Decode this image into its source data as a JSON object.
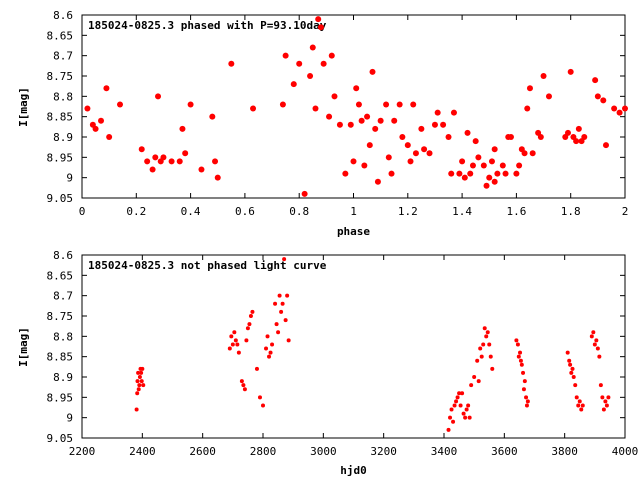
{
  "chart_data": [
    {
      "type": "scatter",
      "title": "185024-0825.3 phased with P=93.10day",
      "xlabel": "phase",
      "ylabel": "I[mag]",
      "xlim": [
        0,
        2
      ],
      "ylim": [
        9.05,
        8.6
      ],
      "y_inverted": true,
      "grid": false,
      "marker_color": "#ff0000",
      "xticks": [
        "0",
        "0.2",
        "0.4",
        "0.6",
        "0.8",
        "1",
        "1.2",
        "1.4",
        "1.6",
        "1.8",
        "2"
      ],
      "yticks": [
        "8.6",
        "8.65",
        "8.7",
        "8.75",
        "8.8",
        "8.85",
        "8.9",
        "8.95",
        "9",
        "9.05"
      ],
      "series": [
        {
          "x": [
            0.02,
            0.04,
            0.05,
            0.07,
            0.09,
            0.1,
            0.14,
            0.22,
            0.24,
            0.26,
            0.27,
            0.28,
            0.29,
            0.3,
            0.33,
            0.36,
            0.37,
            0.38,
            0.4,
            0.44,
            0.48,
            0.49,
            0.5,
            0.55,
            0.63,
            0.74,
            0.75,
            0.78,
            0.8,
            0.82,
            0.84,
            0.85,
            0.86,
            0.87,
            0.88,
            0.89,
            0.91,
            0.92,
            0.93,
            0.95,
            0.97,
            0.99,
            1.0,
            1.01,
            1.02,
            1.03,
            1.04,
            1.05,
            1.06,
            1.07,
            1.08,
            1.09,
            1.1,
            1.12,
            1.13,
            1.14,
            1.15,
            1.17,
            1.18,
            1.2,
            1.21,
            1.22,
            1.23,
            1.25,
            1.26,
            1.28,
            1.3,
            1.31,
            1.33,
            1.35,
            1.36,
            1.37,
            1.39,
            1.4,
            1.41,
            1.42,
            1.43,
            1.44,
            1.45,
            1.46,
            1.48,
            1.49,
            1.5,
            1.51,
            1.52,
            1.52,
            1.53,
            1.55,
            1.56,
            1.57,
            1.58,
            1.6,
            1.61,
            1.62,
            1.63,
            1.64,
            1.65,
            1.66,
            1.68,
            1.69,
            1.7,
            1.72,
            1.78,
            1.79,
            1.8,
            1.81,
            1.82,
            1.83,
            1.84,
            1.85,
            1.89,
            1.9,
            1.92,
            1.93,
            1.96,
            1.98,
            2.0
          ],
          "y": [
            8.83,
            8.87,
            8.88,
            8.86,
            8.78,
            8.9,
            8.82,
            8.93,
            8.96,
            8.98,
            8.95,
            8.8,
            8.96,
            8.95,
            8.96,
            8.96,
            8.88,
            8.94,
            8.82,
            8.98,
            8.85,
            8.96,
            9.0,
            8.72,
            8.83,
            8.82,
            8.7,
            8.77,
            8.72,
            9.04,
            8.75,
            8.68,
            8.83,
            8.61,
            8.63,
            8.72,
            8.85,
            8.7,
            8.8,
            8.87,
            8.99,
            8.87,
            8.96,
            8.78,
            8.82,
            8.86,
            8.97,
            8.85,
            8.92,
            8.74,
            8.88,
            9.01,
            8.86,
            8.82,
            8.95,
            8.99,
            8.86,
            8.82,
            8.9,
            8.92,
            8.96,
            8.82,
            8.94,
            8.88,
            8.93,
            8.94,
            8.87,
            8.84,
            8.87,
            8.9,
            8.99,
            8.84,
            8.99,
            8.96,
            9.0,
            8.89,
            8.99,
            8.97,
            8.91,
            8.95,
            8.97,
            9.02,
            9.0,
            8.96,
            8.93,
            9.01,
            8.99,
            8.97,
            8.99,
            8.9,
            8.9,
            8.99,
            8.97,
            8.93,
            8.94,
            8.83,
            8.78,
            8.94,
            8.89,
            8.9,
            8.75,
            8.8,
            8.9,
            8.89,
            8.74,
            8.9,
            8.91,
            8.88,
            8.91,
            8.9,
            8.76,
            8.8,
            8.81,
            8.92,
            8.83,
            8.84,
            8.83
          ]
        }
      ]
    },
    {
      "type": "scatter",
      "title": "185024-0825.3 not phased light curve",
      "xlabel": "hjd0",
      "ylabel": "I[mag]",
      "xlim": [
        2200,
        4000
      ],
      "ylim": [
        9.05,
        8.6
      ],
      "y_inverted": true,
      "grid": false,
      "marker_color": "#ff0000",
      "xticks": [
        "2200",
        "2400",
        "2600",
        "2800",
        "3000",
        "3200",
        "3400",
        "3600",
        "3800",
        "4000"
      ],
      "yticks": [
        "8.6",
        "8.65",
        "8.7",
        "8.75",
        "8.8",
        "8.85",
        "8.9",
        "8.95",
        "9",
        "9.05"
      ],
      "series": [
        {
          "x": [
            2381,
            2383,
            2384,
            2386,
            2388,
            2390,
            2392,
            2394,
            2396,
            2398,
            2400,
            2403,
            2690,
            2695,
            2700,
            2705,
            2710,
            2715,
            2720,
            2730,
            2735,
            2740,
            2745,
            2750,
            2755,
            2760,
            2765,
            2780,
            2790,
            2800,
            2810,
            2815,
            2820,
            2825,
            2830,
            2840,
            2845,
            2850,
            2855,
            2860,
            2865,
            2870,
            2875,
            2880,
            2885,
            3415,
            3420,
            3425,
            3430,
            3435,
            3440,
            3445,
            3450,
            3455,
            3460,
            3465,
            3470,
            3475,
            3480,
            3485,
            3490,
            3500,
            3510,
            3515,
            3520,
            3525,
            3530,
            3535,
            3540,
            3545,
            3550,
            3555,
            3560,
            3640,
            3645,
            3648,
            3652,
            3655,
            3658,
            3662,
            3665,
            3668,
            3672,
            3675,
            3678,
            3810,
            3815,
            3818,
            3822,
            3826,
            3830,
            3835,
            3840,
            3845,
            3850,
            3855,
            3860,
            3890,
            3895,
            3900,
            3905,
            3910,
            3915,
            3920,
            3925,
            3930,
            3935,
            3940,
            3945
          ],
          "y": [
            8.98,
            8.94,
            8.91,
            8.89,
            8.93,
            8.92,
            8.9,
            8.88,
            8.89,
            8.91,
            8.88,
            8.92,
            8.83,
            8.8,
            8.82,
            8.79,
            8.81,
            8.82,
            8.84,
            8.91,
            8.92,
            8.93,
            8.81,
            8.78,
            8.77,
            8.75,
            8.74,
            8.88,
            8.95,
            8.97,
            8.83,
            8.8,
            8.85,
            8.84,
            8.82,
            8.72,
            8.77,
            8.79,
            8.7,
            8.74,
            8.72,
            8.61,
            8.76,
            8.7,
            8.81,
            9.03,
            9.0,
            8.98,
            9.01,
            8.97,
            8.96,
            8.95,
            8.94,
            8.97,
            8.94,
            8.99,
            9.0,
            8.98,
            8.97,
            9.0,
            8.92,
            8.9,
            8.86,
            8.91,
            8.83,
            8.85,
            8.82,
            8.78,
            8.8,
            8.79,
            8.82,
            8.85,
            8.88,
            8.81,
            8.82,
            8.85,
            8.84,
            8.86,
            8.87,
            8.89,
            8.93,
            8.91,
            8.95,
            8.97,
            8.96,
            8.84,
            8.86,
            8.87,
            8.89,
            8.88,
            8.9,
            8.92,
            8.95,
            8.97,
            8.96,
            8.98,
            8.97,
            8.8,
            8.79,
            8.82,
            8.81,
            8.83,
            8.85,
            8.92,
            8.95,
            8.98,
            8.96,
            8.97,
            8.95
          ]
        }
      ]
    }
  ]
}
